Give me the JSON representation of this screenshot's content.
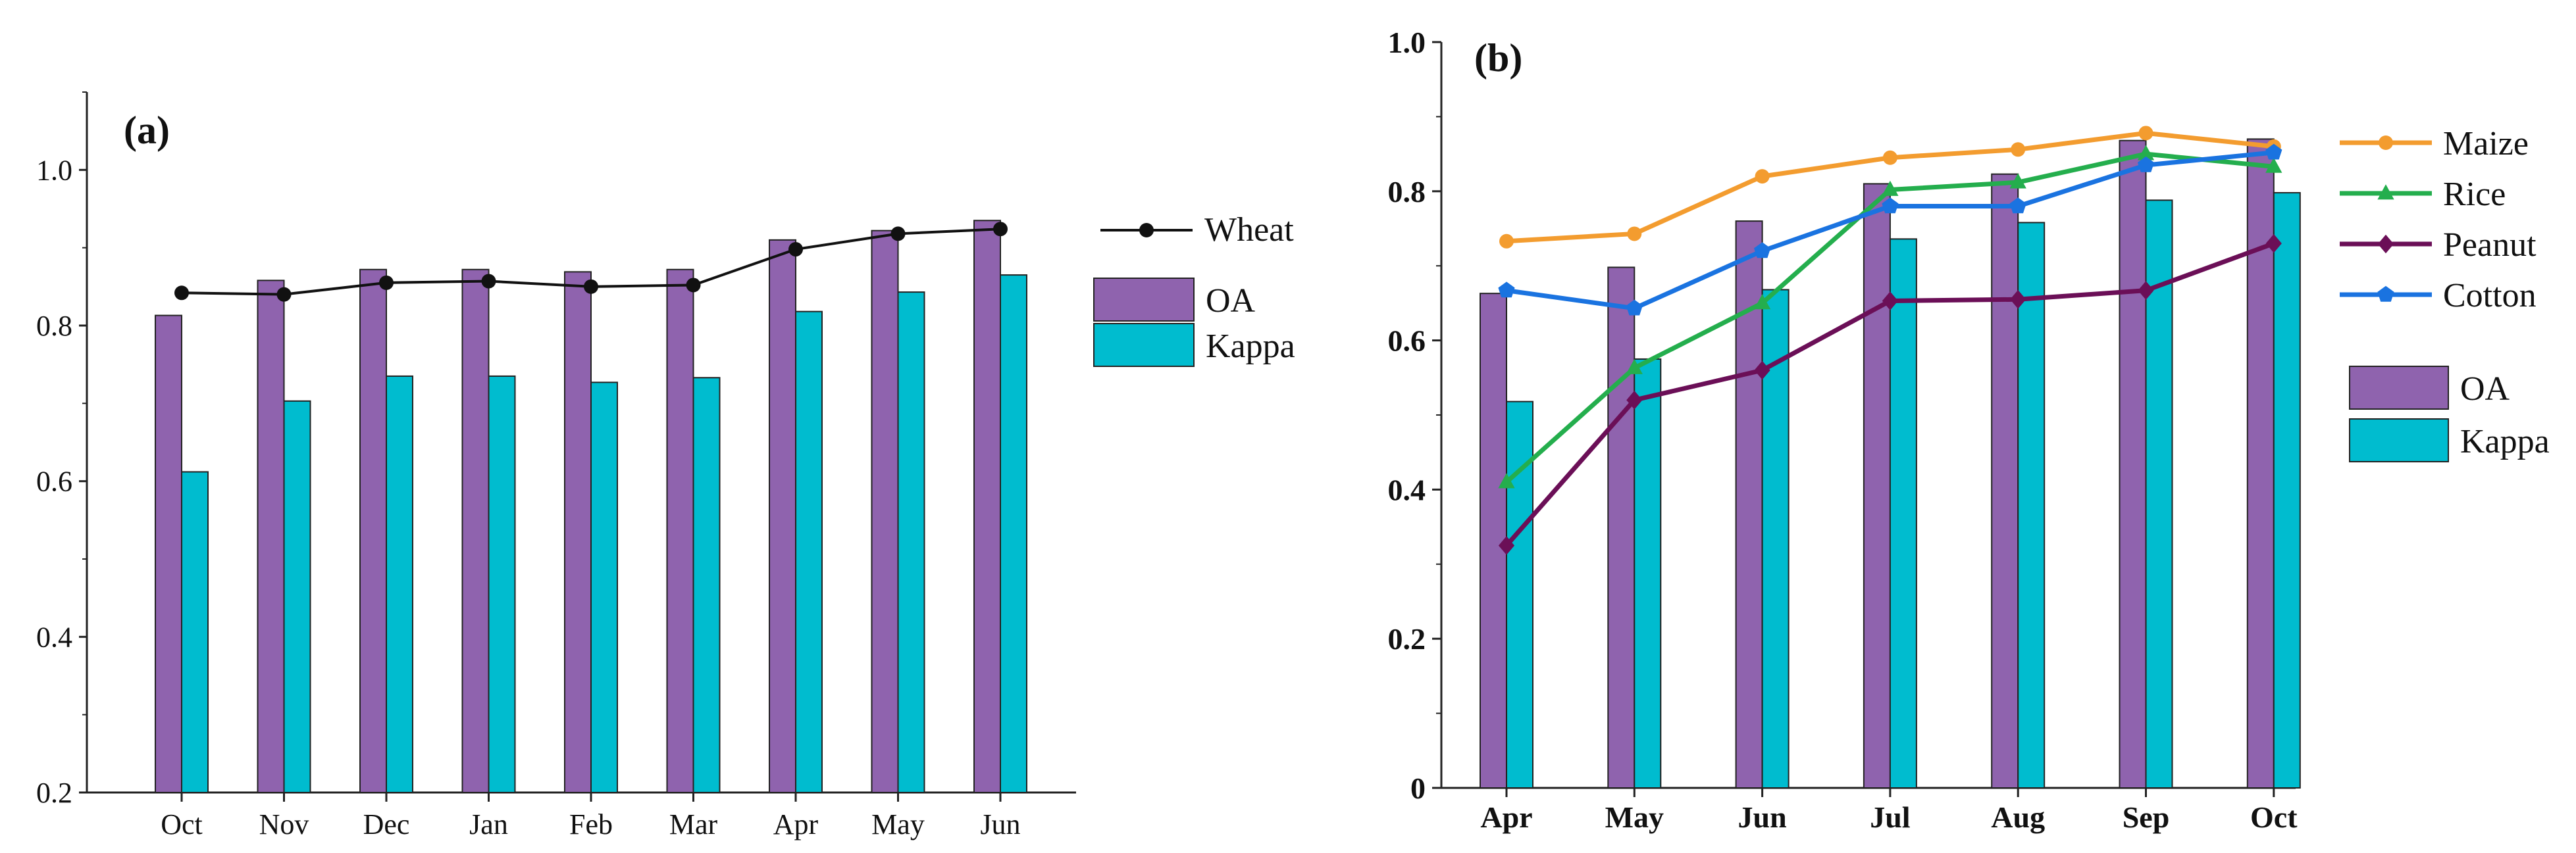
{
  "colors": {
    "oa": "#8F63AE",
    "kappa": "#00BCCF",
    "wheat": "#111111",
    "maize": "#F39C2F",
    "rice": "#24AE4D",
    "peanut": "#6B0F57",
    "cotton": "#1A73E0"
  },
  "chart_data": [
    {
      "type": "bar",
      "panel_label": "(a)",
      "categories": [
        "Oct",
        "Nov",
        "Dec",
        "Jan",
        "Feb",
        "Mar",
        "Apr",
        "May",
        "Jun"
      ],
      "ylim": [
        0.2,
        1.1
      ],
      "yticks": [
        "0.2",
        "0.4",
        "0.6",
        "0.8",
        "1.0"
      ],
      "series": [
        {
          "name": "OA",
          "kind": "bar",
          "values": [
            0.813,
            0.858,
            0.872,
            0.872,
            0.869,
            0.872,
            0.91,
            0.922,
            0.935
          ]
        },
        {
          "name": "Kappa",
          "kind": "bar",
          "values": [
            0.612,
            0.703,
            0.735,
            0.735,
            0.727,
            0.733,
            0.818,
            0.843,
            0.865
          ]
        },
        {
          "name": "Wheat",
          "kind": "line",
          "values": [
            0.842,
            0.84,
            0.855,
            0.857,
            0.85,
            0.852,
            0.898,
            0.918,
            0.924
          ]
        }
      ],
      "legend": {
        "line_items": [
          "Wheat"
        ],
        "bar_items": [
          "OA",
          "Kappa"
        ]
      }
    },
    {
      "type": "bar",
      "panel_label": "(b)",
      "categories": [
        "Apr",
        "May",
        "Jun",
        "Jul",
        "Aug",
        "Sep",
        "Oct"
      ],
      "ylim": [
        0,
        1.0
      ],
      "yticks": [
        "0",
        "0.2",
        "0.4",
        "0.6",
        "0.8",
        "1.0"
      ],
      "series": [
        {
          "name": "OA",
          "kind": "bar",
          "values": [
            0.663,
            0.698,
            0.76,
            0.81,
            0.823,
            0.868,
            0.87
          ]
        },
        {
          "name": "Kappa",
          "kind": "bar",
          "values": [
            0.518,
            0.575,
            0.668,
            0.736,
            0.758,
            0.788,
            0.798
          ]
        },
        {
          "name": "Maize",
          "kind": "line",
          "marker": "circle",
          "values": [
            0.733,
            0.743,
            0.82,
            0.845,
            0.856,
            0.878,
            0.86
          ]
        },
        {
          "name": "Rice",
          "kind": "line",
          "marker": "triangle",
          "values": [
            0.41,
            0.563,
            0.65,
            0.802,
            0.812,
            0.85,
            0.833
          ]
        },
        {
          "name": "Peanut",
          "kind": "line",
          "marker": "diamond",
          "values": [
            0.325,
            0.52,
            0.56,
            0.653,
            0.655,
            0.667,
            0.73
          ]
        },
        {
          "name": "Cotton",
          "kind": "line",
          "marker": "pentagon",
          "values": [
            0.667,
            0.643,
            0.72,
            0.78,
            0.78,
            0.835,
            0.852
          ]
        }
      ],
      "legend": {
        "line_items": [
          "Maize",
          "Rice",
          "Peanut",
          "Cotton"
        ],
        "bar_items": [
          "OA",
          "Kappa"
        ]
      }
    }
  ]
}
